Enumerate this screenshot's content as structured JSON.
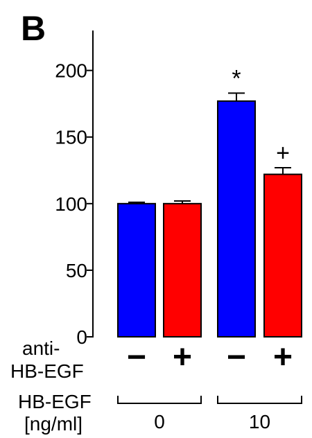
{
  "panel_label": "B",
  "chart_data": {
    "type": "bar",
    "ylim": [
      0,
      230
    ],
    "yticks": [
      0,
      50,
      100,
      150,
      200
    ],
    "ytick_labels": [
      "0",
      "50",
      "100",
      "150",
      "200"
    ],
    "grid": false,
    "legend": "none",
    "bars": [
      {
        "value": 100,
        "error": 1,
        "color": "#0000ff",
        "anti_hb_egf": "−",
        "hb_egf_group": 0,
        "annotation": ""
      },
      {
        "value": 100,
        "error": 2,
        "color": "#ff0000",
        "anti_hb_egf": "+",
        "hb_egf_group": 0,
        "annotation": ""
      },
      {
        "value": 177,
        "error": 6,
        "color": "#0000ff",
        "anti_hb_egf": "−",
        "hb_egf_group": 1,
        "annotation": "*"
      },
      {
        "value": 122,
        "error": 5,
        "color": "#ff0000",
        "anti_hb_egf": "+",
        "hb_egf_group": 1,
        "annotation": "+"
      }
    ],
    "row_labels": {
      "anti_line1": "anti-",
      "anti_line2": "HB-EGF",
      "hb_line1": "HB-EGF",
      "hb_line2": "[ng/ml]"
    },
    "hb_egf_groups": [
      "0",
      "10"
    ]
  }
}
